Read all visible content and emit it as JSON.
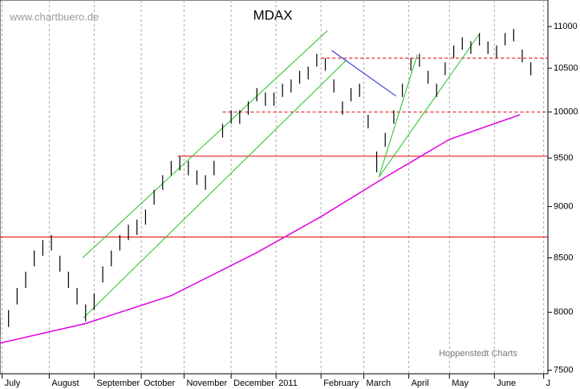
{
  "chart_data": {
    "type": "ohlc",
    "title": "MDAX",
    "source": "www.chartbuero.de",
    "credit": "Hoppenstedt Charts",
    "log_scale": true,
    "grid": true,
    "bar_color": "#000000",
    "xlim": [
      0,
      256
    ],
    "ylim": [
      7470,
      11330
    ],
    "yticks": [
      7500,
      8000,
      8500,
      9000,
      9500,
      10000,
      10500,
      11000
    ],
    "xticks": [
      {
        "value": 1,
        "label": "July"
      },
      {
        "value": 23,
        "label": "August"
      },
      {
        "value": 44,
        "label": "September"
      },
      {
        "value": 66,
        "label": "October"
      },
      {
        "value": 86,
        "label": "November"
      },
      {
        "value": 108,
        "label": "December"
      },
      {
        "value": 129,
        "label": "2011"
      },
      {
        "value": 150,
        "label": "February"
      },
      {
        "value": 170,
        "label": "March"
      },
      {
        "value": 191,
        "label": "April"
      },
      {
        "value": 210,
        "label": "May"
      },
      {
        "value": 231,
        "label": "June"
      },
      {
        "value": 254,
        "label": "J"
      }
    ],
    "x": [
      0,
      4,
      8,
      12,
      16,
      20,
      24,
      28,
      32,
      36,
      40,
      44,
      48,
      52,
      56,
      60,
      64,
      68,
      72,
      76,
      80,
      84,
      88,
      92,
      96,
      100,
      104,
      108,
      112,
      116,
      120,
      124,
      128,
      132,
      136,
      140,
      144,
      148,
      152,
      156,
      160,
      164,
      168,
      172,
      176,
      180,
      184,
      188,
      192,
      196,
      200,
      204,
      208,
      212,
      216,
      220,
      224,
      228,
      232,
      236,
      240,
      244,
      248
    ],
    "high": [
      7950,
      8020,
      8220,
      8370,
      8570,
      8670,
      8720,
      8520,
      8370,
      8220,
      8070,
      8170,
      8420,
      8570,
      8720,
      8820,
      8870,
      8970,
      9170,
      9320,
      9470,
      9520,
      9470,
      9370,
      9320,
      9470,
      9870,
      10020,
      10020,
      10120,
      10270,
      10220,
      10220,
      10320,
      10370,
      10470,
      10520,
      10670,
      10620,
      10370,
      10120,
      10270,
      10320,
      9970,
      9570,
      9770,
      10020,
      10320,
      10620,
      10670,
      10470,
      10320,
      10570,
      10770,
      10870,
      10820,
      10920,
      10820,
      10770,
      10920,
      10970,
      10720,
      10570
    ],
    "low": [
      7800,
      7870,
      8070,
      8220,
      8420,
      8520,
      8570,
      8370,
      8220,
      8070,
      7920,
      8020,
      8270,
      8420,
      8570,
      8670,
      8720,
      8820,
      9020,
      9170,
      9320,
      9370,
      9320,
      9220,
      9170,
      9320,
      9720,
      9870,
      9870,
      9970,
      10120,
      10070,
      10070,
      10170,
      10220,
      10320,
      10370,
      10520,
      10470,
      10220,
      9970,
      10120,
      10170,
      9820,
      9350,
      9620,
      9870,
      10170,
      10470,
      10520,
      10320,
      10170,
      10420,
      10620,
      10720,
      10670,
      10770,
      10670,
      10620,
      10770,
      10820,
      10570,
      10420
    ],
    "moving_average": {
      "color": "#e000e0",
      "x": [
        0,
        40,
        80,
        120,
        150,
        180,
        210,
        243
      ],
      "values": [
        7730,
        7900,
        8150,
        8550,
        8900,
        9300,
        9700,
        9970
      ]
    },
    "hlines": [
      {
        "value": 8700,
        "from": 0,
        "color": "#e00000",
        "dashed": false
      },
      {
        "value": 9520,
        "from": 83,
        "color": "#e00000",
        "dashed": false
      },
      {
        "value": 10000,
        "from": 104,
        "color": "#e00000",
        "dashed": true
      },
      {
        "value": 10620,
        "from": 150,
        "color": "#e00000",
        "dashed": true
      }
    ],
    "trendlines": [
      {
        "x": [
          38.6,
          153
        ],
        "y": [
          8500,
          10950
        ],
        "color": "#20c020"
      },
      {
        "x": [
          39,
          162
        ],
        "y": [
          7950,
          10600
        ],
        "color": "#20c020"
      },
      {
        "x": [
          155,
          185
        ],
        "y": [
          10710,
          10180
        ],
        "color": "#2020e0"
      },
      {
        "x": [
          177,
          195
        ],
        "y": [
          9300,
          10660
        ],
        "color": "#20c020"
      },
      {
        "x": [
          177,
          224
        ],
        "y": [
          9300,
          10910
        ],
        "color": "#20c020"
      }
    ]
  }
}
